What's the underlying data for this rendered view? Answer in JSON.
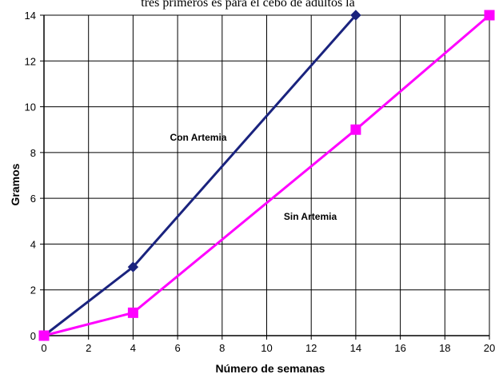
{
  "top_text": "tres primeros es para el cebo de adultos la",
  "chart_data": {
    "type": "line",
    "title": "",
    "xlabel": "Número de semanas",
    "ylabel": "Gramos",
    "xlim": [
      0,
      20
    ],
    "ylim": [
      0,
      14
    ],
    "x_ticks": [
      0,
      2,
      4,
      6,
      8,
      10,
      12,
      14,
      16,
      18,
      20
    ],
    "y_ticks": [
      0,
      2,
      4,
      6,
      8,
      10,
      12,
      14
    ],
    "grid": true,
    "legend": "none",
    "series": [
      {
        "name": "Con Artemia",
        "color": "#1a237e",
        "marker": "diamond",
        "points": [
          {
            "x": 0,
            "y": 0
          },
          {
            "x": 4,
            "y": 3
          },
          {
            "x": 14,
            "y": 14
          }
        ]
      },
      {
        "name": "Sin Artemia",
        "color": "#ff00ff",
        "marker": "square",
        "points": [
          {
            "x": 0,
            "y": 0
          },
          {
            "x": 4,
            "y": 1
          },
          {
            "x": 14,
            "y": 9
          },
          {
            "x": 20,
            "y": 14
          }
        ]
      }
    ]
  }
}
